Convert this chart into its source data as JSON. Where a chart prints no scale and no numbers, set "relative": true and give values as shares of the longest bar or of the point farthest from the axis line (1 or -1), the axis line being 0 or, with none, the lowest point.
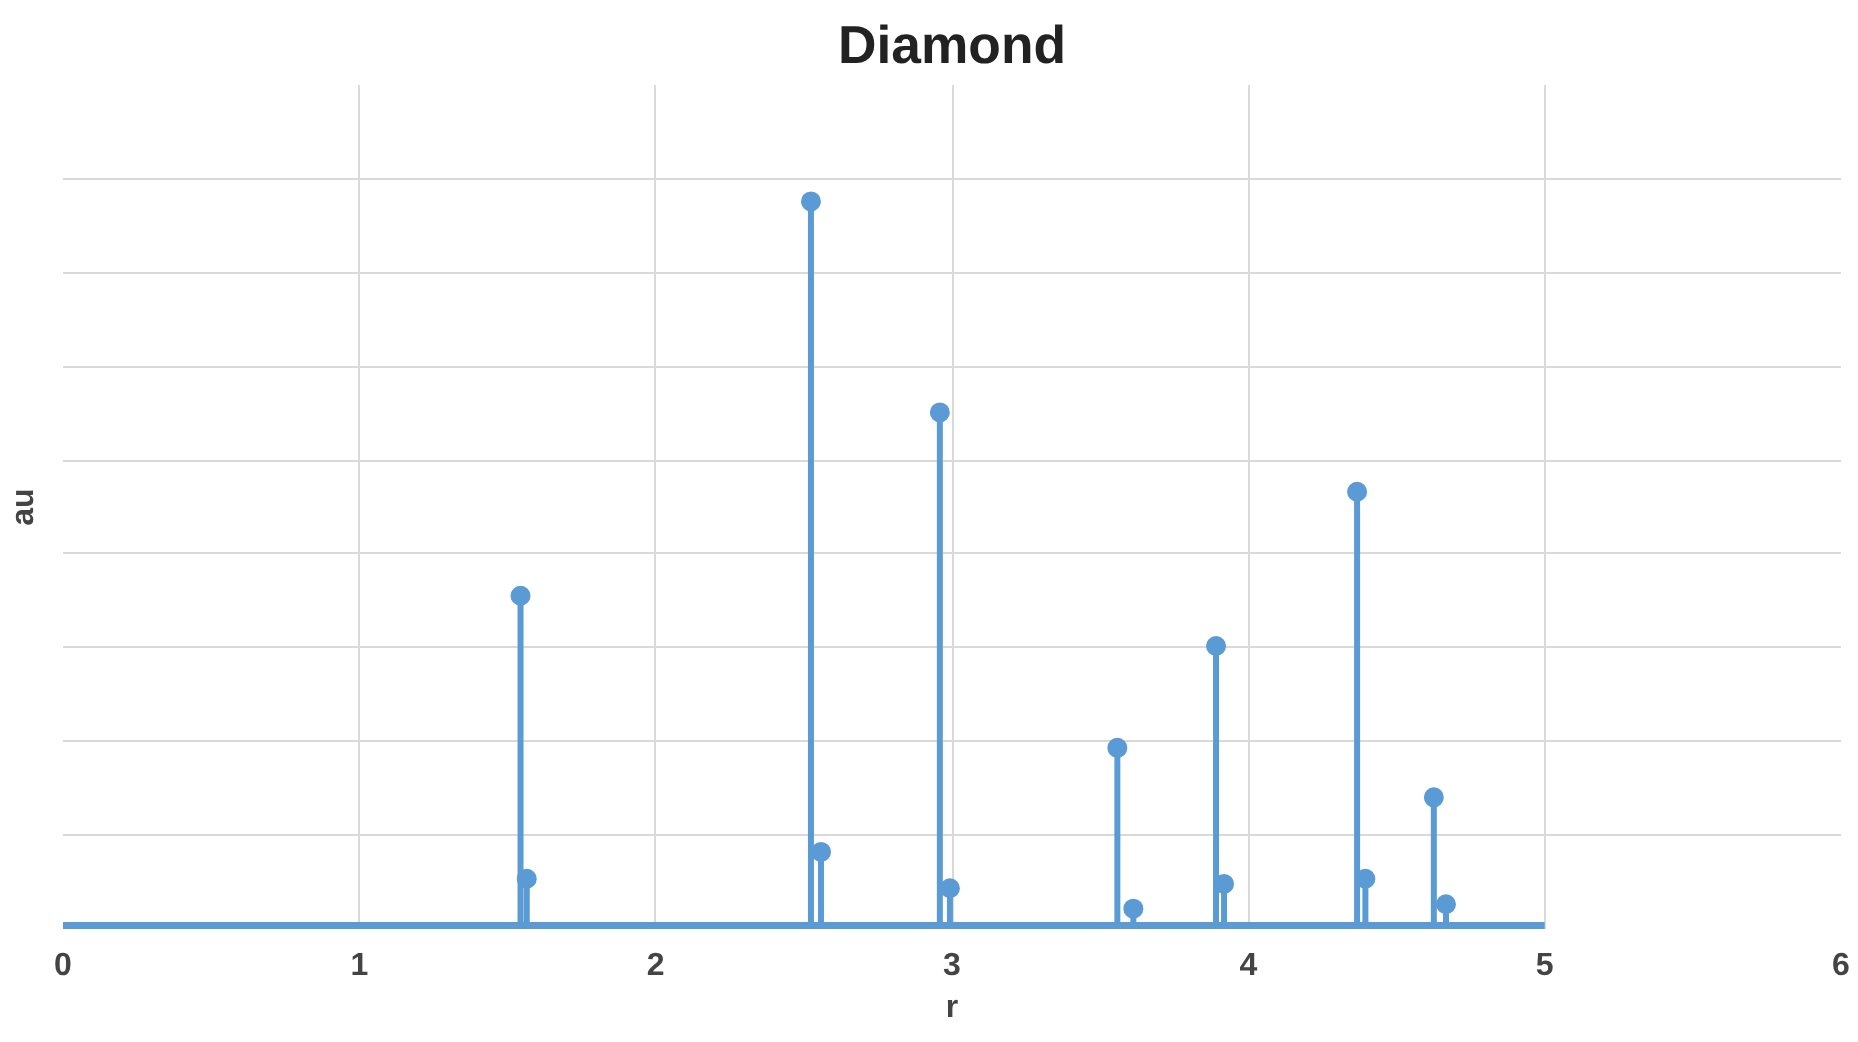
{
  "chart_data": {
    "type": "lollipop",
    "title": "Diamond",
    "xlabel": "r",
    "ylabel": "au",
    "relative": true,
    "grid": true,
    "marker": "circle",
    "color": "#5b9bd5",
    "xlim": [
      0,
      6
    ],
    "xticks": [
      0,
      1,
      2,
      3,
      4,
      5,
      6
    ],
    "x": [
      1.544,
      1.565,
      2.524,
      2.558,
      2.959,
      2.993,
      3.558,
      3.612,
      3.891,
      3.918,
      4.367,
      4.395,
      4.626,
      4.667
    ],
    "values": [
      0.458,
      0.069,
      1,
      0.106,
      0.71,
      0.056,
      0.249,
      0.028,
      0.389,
      0.062,
      0.601,
      0.069,
      0.181,
      0.034
    ],
    "series": [
      {
        "type": "line",
        "marker": "none",
        "color": "#5b9bd5",
        "x": [
          0,
          5
        ],
        "values": [
          0,
          0
        ]
      }
    ]
  }
}
